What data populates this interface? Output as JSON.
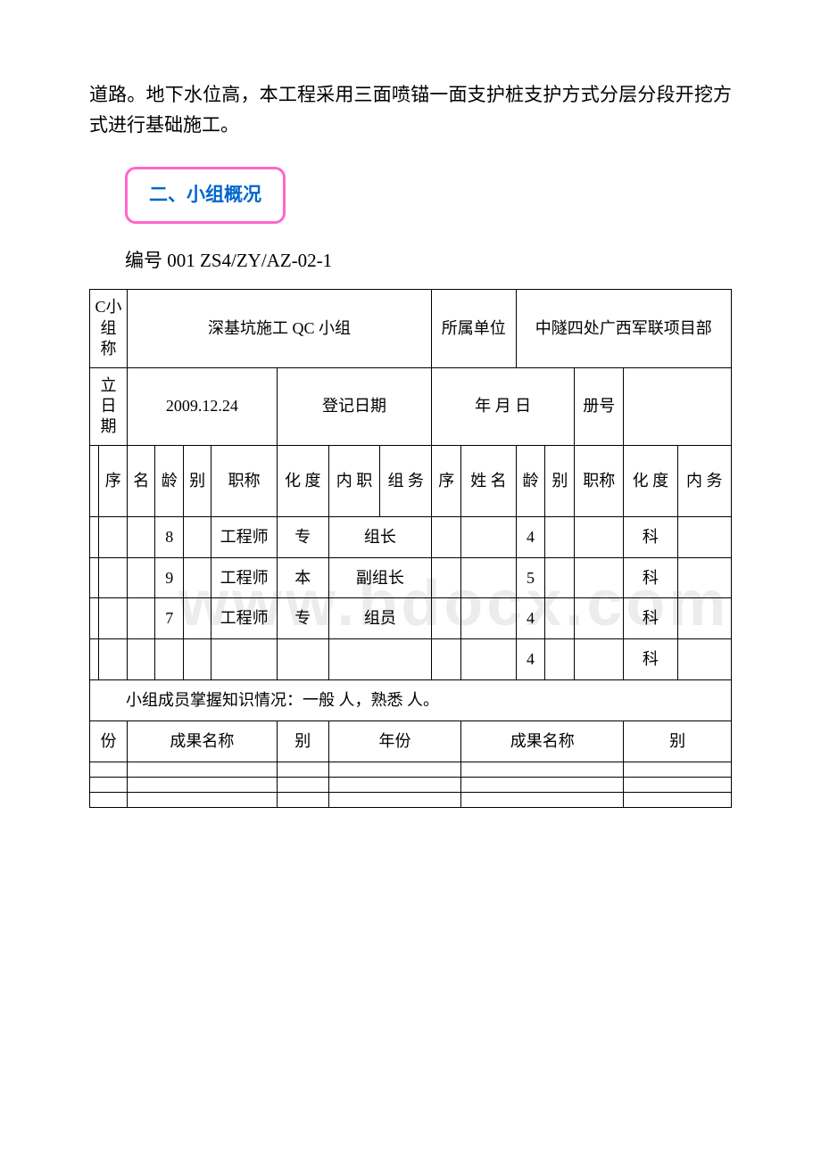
{
  "intro": "道路。地下水位高，本工程采用三面喷锚一面支护桩支护方式分层分段开挖方式进行基础施工。",
  "section_title": "二、小组概况",
  "code_prefix": "编号 001 ",
  "code_en": "ZS4/ZY/AZ-02-1",
  "watermark": "www.bdocx.com",
  "section_box_border": "#ff66cc",
  "section_box_text": "#0066cc",
  "table": {
    "row1": {
      "label": "C小组 称",
      "value": "深基坑施工 QC 小组",
      "unit_label": "所属单位",
      "unit_value": "中隧四处广西军联项目部"
    },
    "row2": {
      "label": "立日期",
      "date": "2009.12.24",
      "reg_label": "登记日期",
      "reg_value": "年 月 日",
      "cert_label": "册号",
      "cert_value": ""
    },
    "members_header": {
      "seq": "序",
      "name": "名",
      "age": "龄",
      "gender": "别",
      "title": "职称",
      "edu": "化 度",
      "role": "内 职",
      "role2": "组 务",
      "name2": "姓 名"
    },
    "members": [
      {
        "age": "8",
        "title": "工程师",
        "edu": "专",
        "role": "组长",
        "age2": "4",
        "edu2": "科"
      },
      {
        "age": "9",
        "title": "工程师",
        "edu": "本",
        "role": "副组长",
        "age2": "5",
        "edu2": "科"
      },
      {
        "age": "7",
        "title": "工程师",
        "edu": "专",
        "role": "组员",
        "age2": "4",
        "edu2": "科"
      },
      {
        "age": "",
        "title": "",
        "edu": "",
        "role": "",
        "age2": "4",
        "edu2": "科"
      }
    ],
    "knowledge_text": "小组成员掌握知识情况：一般 人，熟悉 人。",
    "results_header": {
      "year": "份",
      "name": "成果名称",
      "type": "别",
      "year2": "年份",
      "name2": "成果名称",
      "type2": "别"
    }
  }
}
